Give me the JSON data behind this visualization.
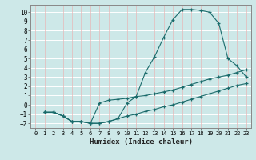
{
  "xlabel": "Humidex (Indice chaleur)",
  "bg_color": "#cde8e8",
  "line_color": "#1a6b6b",
  "xlim": [
    -0.5,
    23.5
  ],
  "ylim": [
    -2.5,
    10.8
  ],
  "xticks": [
    0,
    1,
    2,
    3,
    4,
    5,
    6,
    7,
    8,
    9,
    10,
    11,
    12,
    13,
    14,
    15,
    16,
    17,
    18,
    19,
    20,
    21,
    22,
    23
  ],
  "yticks": [
    -2,
    -1,
    0,
    1,
    2,
    3,
    4,
    5,
    6,
    7,
    8,
    9,
    10
  ],
  "line1_x": [
    1,
    2,
    3,
    4,
    5,
    6,
    7,
    8,
    9,
    10,
    11,
    12,
    13,
    14,
    15,
    16,
    17,
    18,
    19,
    20,
    21,
    22,
    23
  ],
  "line1_y": [
    -0.8,
    -0.8,
    -1.2,
    -1.8,
    -1.8,
    -2.0,
    -2.0,
    -1.8,
    -1.5,
    0.2,
    0.9,
    3.5,
    5.2,
    7.3,
    9.2,
    10.3,
    10.3,
    10.2,
    10.0,
    8.8,
    5.0,
    4.2,
    3.0
  ],
  "line2_x": [
    1,
    2,
    3,
    4,
    5,
    6,
    7,
    8,
    9,
    10,
    11,
    12,
    13,
    14,
    15,
    16,
    17,
    18,
    19,
    20,
    21,
    22,
    23
  ],
  "line2_y": [
    -0.8,
    -0.8,
    -1.2,
    -1.8,
    -1.8,
    -2.0,
    0.2,
    0.5,
    0.6,
    0.7,
    0.9,
    1.0,
    1.2,
    1.4,
    1.6,
    1.9,
    2.2,
    2.5,
    2.8,
    3.0,
    3.2,
    3.5,
    3.8
  ],
  "line3_x": [
    1,
    2,
    3,
    4,
    5,
    6,
    7,
    8,
    9,
    10,
    11,
    12,
    13,
    14,
    15,
    16,
    17,
    18,
    19,
    20,
    21,
    22,
    23
  ],
  "line3_y": [
    -0.8,
    -0.8,
    -1.2,
    -1.8,
    -1.8,
    -2.0,
    -2.0,
    -1.8,
    -1.5,
    -1.2,
    -1.0,
    -0.7,
    -0.5,
    -0.2,
    0.0,
    0.3,
    0.6,
    0.9,
    1.2,
    1.5,
    1.8,
    2.1,
    2.3
  ]
}
